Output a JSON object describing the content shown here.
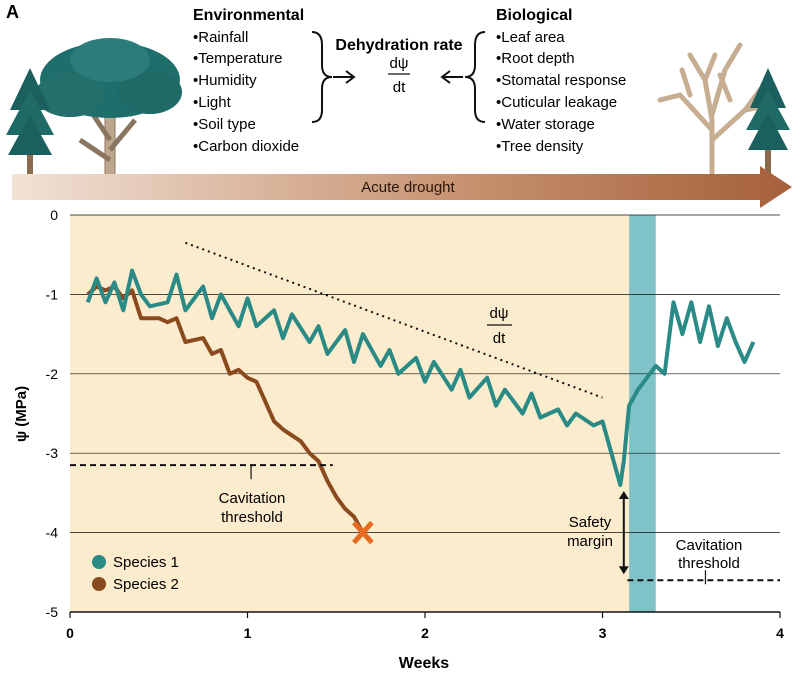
{
  "panel_label": "A",
  "environmental": {
    "title": "Environmental",
    "items": [
      "•Rainfall",
      "•Temperature",
      "•Humidity",
      "•Light",
      "•Soil type",
      "•Carbon dioxide"
    ]
  },
  "biological": {
    "title": "Biological",
    "items": [
      "•Leaf area",
      "•Root depth",
      "•Stomatal response",
      "•Cuticular leakage",
      "•Water storage",
      "•Tree density"
    ]
  },
  "dehydration": {
    "title": "Dehydration rate",
    "num": "dψ",
    "den": "dt"
  },
  "arrow_label": "Acute drought",
  "chart": {
    "slope_label_num": "dψ",
    "slope_label_den": "dt",
    "cavitation_label_1": [
      "Cavitation",
      "threshold"
    ],
    "cavitation_label_2": [
      "Cavitation",
      "threshold"
    ],
    "safety_label": [
      "Safety",
      "margin"
    ],
    "colors": {
      "species1": "#2a8a86",
      "species2": "#8b4a1e",
      "bg": "#fbeccd",
      "band": "#7fc3c8",
      "x": "#e86a22"
    }
  },
  "chart_data": {
    "type": "line",
    "xlabel": "Weeks",
    "ylabel": "ψ (MPa)",
    "xlim": [
      0,
      4
    ],
    "ylim": [
      -5,
      0
    ],
    "xticks": [
      "0",
      "1",
      "2",
      "3",
      "4"
    ],
    "yticks": [
      "0",
      "-1",
      "-2",
      "-3",
      "-4",
      "-5"
    ],
    "grid": true,
    "legend_position": "bottom-left",
    "series": [
      {
        "name": "Species 1",
        "x": [
          0.1,
          0.15,
          0.2,
          0.25,
          0.3,
          0.35,
          0.4,
          0.45,
          0.55,
          0.6,
          0.65,
          0.75,
          0.8,
          0.85,
          0.95,
          1.0,
          1.05,
          1.15,
          1.2,
          1.25,
          1.35,
          1.4,
          1.45,
          1.55,
          1.6,
          1.65,
          1.75,
          1.8,
          1.85,
          1.95,
          2.0,
          2.05,
          2.15,
          2.2,
          2.25,
          2.35,
          2.4,
          2.45,
          2.55,
          2.6,
          2.65,
          2.75,
          2.8,
          2.85,
          2.95,
          3.0,
          3.05,
          3.1,
          3.12,
          3.15,
          3.2,
          3.3,
          3.35,
          3.4,
          3.45,
          3.5,
          3.55,
          3.6,
          3.65,
          3.7,
          3.75,
          3.8,
          3.85
        ],
        "y": [
          -1.1,
          -0.8,
          -1.1,
          -0.85,
          -1.2,
          -0.7,
          -1.0,
          -1.15,
          -1.1,
          -0.75,
          -1.2,
          -0.9,
          -1.3,
          -1.0,
          -1.4,
          -1.05,
          -1.4,
          -1.2,
          -1.55,
          -1.25,
          -1.6,
          -1.4,
          -1.75,
          -1.45,
          -1.85,
          -1.5,
          -1.9,
          -1.7,
          -2.0,
          -1.8,
          -2.1,
          -1.85,
          -2.2,
          -1.95,
          -2.3,
          -2.05,
          -2.4,
          -2.2,
          -2.5,
          -2.25,
          -2.55,
          -2.45,
          -2.65,
          -2.5,
          -2.65,
          -2.6,
          -3.0,
          -3.4,
          -3.1,
          -2.4,
          -2.2,
          -1.9,
          -2.0,
          -1.1,
          -1.5,
          -1.1,
          -1.6,
          -1.15,
          -1.65,
          -1.3,
          -1.6,
          -1.85,
          -1.6
        ],
        "marker": "none"
      },
      {
        "name": "Species 2",
        "x": [
          0.1,
          0.15,
          0.2,
          0.25,
          0.3,
          0.35,
          0.4,
          0.5,
          0.55,
          0.6,
          0.65,
          0.75,
          0.8,
          0.85,
          0.9,
          0.95,
          1.0,
          1.05,
          1.1,
          1.15,
          1.2,
          1.3,
          1.35,
          1.4,
          1.45,
          1.5,
          1.55,
          1.6,
          1.65
        ],
        "y": [
          -1.0,
          -0.9,
          -0.95,
          -0.9,
          -1.05,
          -0.95,
          -1.3,
          -1.3,
          -1.35,
          -1.3,
          -1.6,
          -1.55,
          -1.75,
          -1.7,
          -2.0,
          -1.95,
          -2.05,
          -2.1,
          -2.35,
          -2.6,
          -2.7,
          -2.85,
          -3.0,
          -3.1,
          -3.35,
          -3.55,
          -3.7,
          -3.8,
          -4.0
        ],
        "marker": "x-at-end"
      }
    ],
    "annotations": [
      {
        "text": "dψ/dt",
        "kind": "slope",
        "x1": 0.65,
        "y1": -0.35,
        "x2": 3.0,
        "y2": -2.3
      },
      {
        "text": "Cavitation threshold",
        "series": "Species 2",
        "y": -3.15
      },
      {
        "text": "Cavitation threshold",
        "series": "Species 1",
        "y": -4.6
      },
      {
        "text": "Safety margin",
        "from_y": -3.4,
        "to_y": -4.6
      }
    ],
    "shaded_regions": [
      {
        "label": "drought",
        "x": [
          0,
          3.15
        ]
      },
      {
        "label": "band",
        "x": [
          3.15,
          3.3
        ]
      }
    ]
  }
}
